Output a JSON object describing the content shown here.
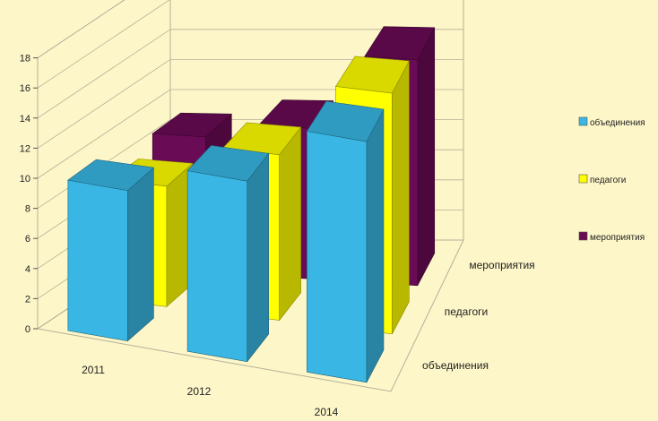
{
  "chart_data": {
    "type": "bar",
    "subtype": "3d-column",
    "categories": [
      "2011",
      "2012",
      "2014"
    ],
    "series": [
      {
        "name": "объединения",
        "values": [
          10,
          12,
          16
        ],
        "color": "#39b6e3"
      },
      {
        "name": "педагоги",
        "values": [
          8,
          11,
          16
        ],
        "color": "#ffff00"
      },
      {
        "name": "мероприятия",
        "values": [
          9,
          10,
          15
        ],
        "color": "#6a0b55"
      }
    ],
    "ylim": [
      0,
      18
    ],
    "yticks": [
      "0",
      "2",
      "4",
      "6",
      "8",
      "10",
      "12",
      "14",
      "16",
      "18"
    ],
    "depth_labels": [
      "объединения",
      "педагоги",
      "мероприятия"
    ],
    "grid": true,
    "legend": "right",
    "background": "#fdf6c8",
    "grid_color": "#b5b09a"
  }
}
